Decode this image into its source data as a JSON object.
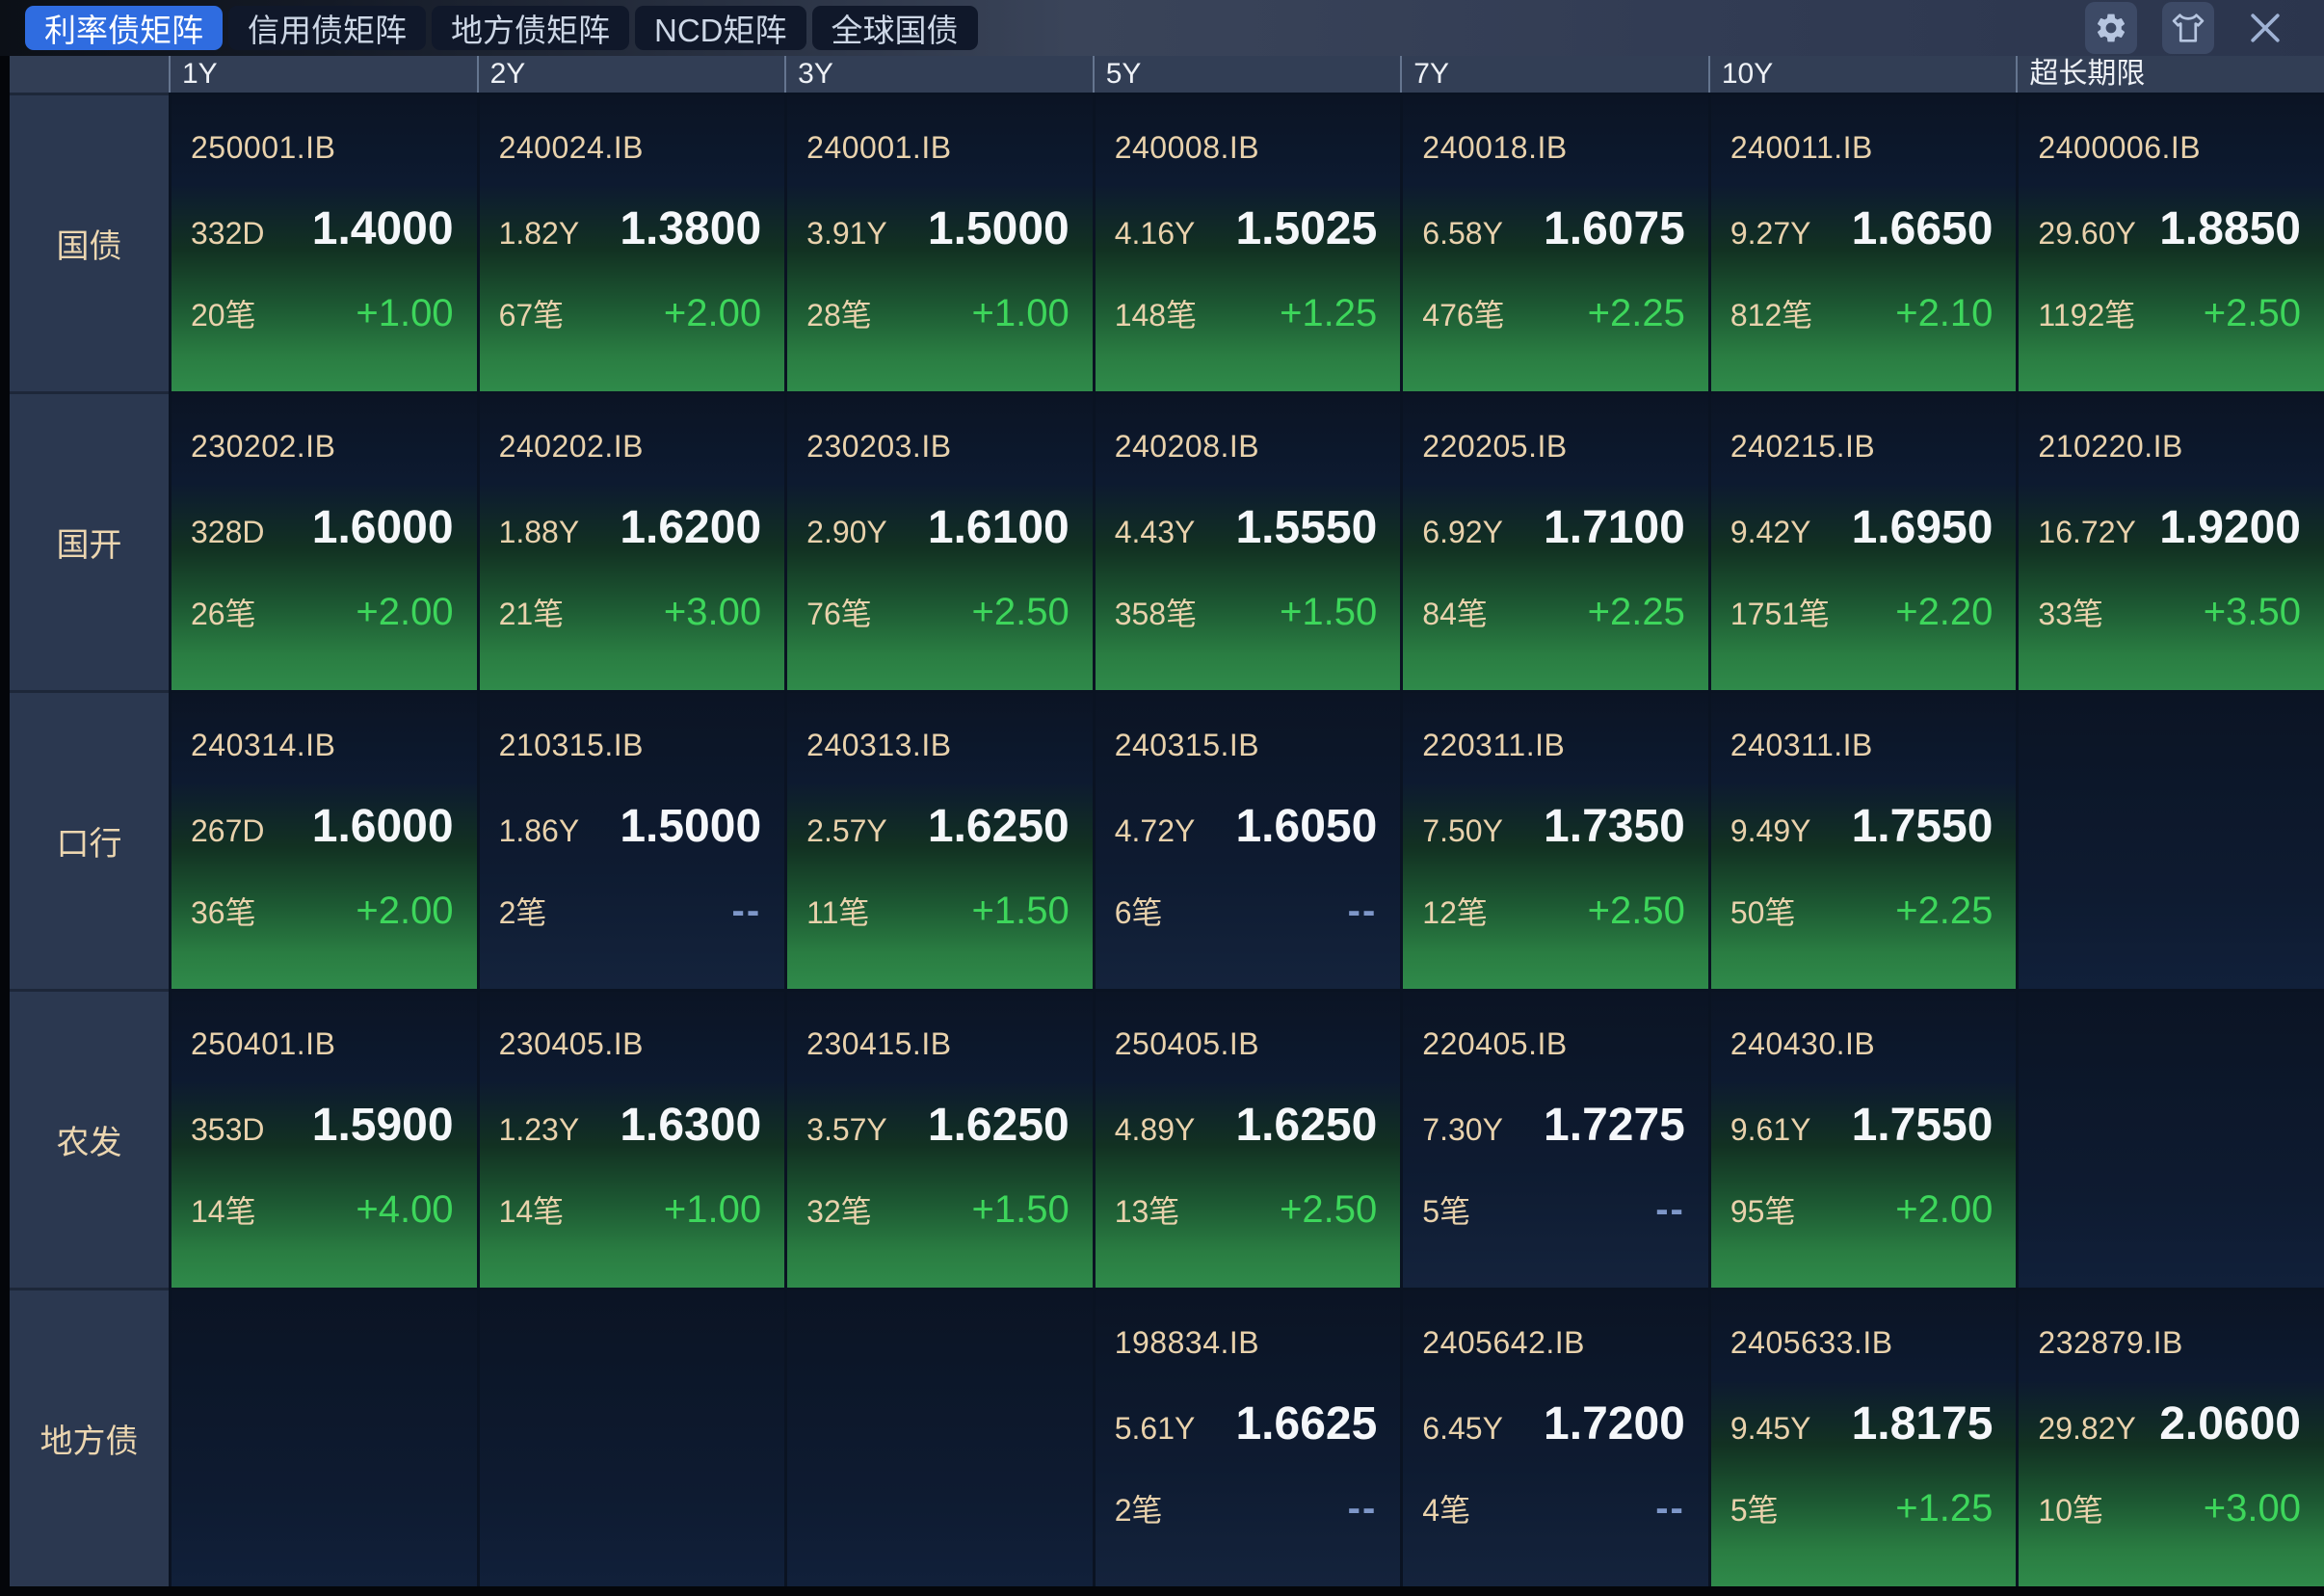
{
  "tabs": [
    {
      "label": "利率债矩阵",
      "active": true
    },
    {
      "label": "信用债矩阵",
      "active": false
    },
    {
      "label": "地方债矩阵",
      "active": false
    },
    {
      "label": "NCD矩阵",
      "active": false
    },
    {
      "label": "全球国债",
      "active": false
    }
  ],
  "window_controls": {
    "settings_icon": "gear-icon",
    "theme_icon": "tshirt-icon",
    "close_icon": "close-icon"
  },
  "colors": {
    "active_tab": "#2f6ce0",
    "cell_navy": "#0d1a30",
    "cell_green_bottom": "#2f8a4a",
    "change_up_text": "#3dd65b",
    "change_flat_text": "#7e97c9",
    "code_text": "#e9d2ac",
    "yield_text": "#f5f7fa"
  },
  "columns": [
    "1Y",
    "2Y",
    "3Y",
    "5Y",
    "7Y",
    "10Y",
    "超长期限"
  ],
  "rows": [
    {
      "label": "国债",
      "cells": [
        {
          "state": "up",
          "code": "250001.IB",
          "term": "332D",
          "yield": "1.4000",
          "trades": "20笔",
          "change": "+1.00"
        },
        {
          "state": "up",
          "code": "240024.IB",
          "term": "1.82Y",
          "yield": "1.3800",
          "trades": "67笔",
          "change": "+2.00"
        },
        {
          "state": "up",
          "code": "240001.IB",
          "term": "3.91Y",
          "yield": "1.5000",
          "trades": "28笔",
          "change": "+1.00"
        },
        {
          "state": "up",
          "code": "240008.IB",
          "term": "4.16Y",
          "yield": "1.5025",
          "trades": "148笔",
          "change": "+1.25"
        },
        {
          "state": "up",
          "code": "240018.IB",
          "term": "6.58Y",
          "yield": "1.6075",
          "trades": "476笔",
          "change": "+2.25"
        },
        {
          "state": "up",
          "code": "240011.IB",
          "term": "9.27Y",
          "yield": "1.6650",
          "trades": "812笔",
          "change": "+2.10"
        },
        {
          "state": "up",
          "code": "2400006.IB",
          "term": "29.60Y",
          "yield": "1.8850",
          "trades": "1192笔",
          "change": "+2.50"
        }
      ]
    },
    {
      "label": "国开",
      "cells": [
        {
          "state": "up",
          "code": "230202.IB",
          "term": "328D",
          "yield": "1.6000",
          "trades": "26笔",
          "change": "+2.00"
        },
        {
          "state": "up",
          "code": "240202.IB",
          "term": "1.88Y",
          "yield": "1.6200",
          "trades": "21笔",
          "change": "+3.00"
        },
        {
          "state": "up",
          "code": "230203.IB",
          "term": "2.90Y",
          "yield": "1.6100",
          "trades": "76笔",
          "change": "+2.50"
        },
        {
          "state": "up",
          "code": "240208.IB",
          "term": "4.43Y",
          "yield": "1.5550",
          "trades": "358笔",
          "change": "+1.50"
        },
        {
          "state": "up",
          "code": "220205.IB",
          "term": "6.92Y",
          "yield": "1.7100",
          "trades": "84笔",
          "change": "+2.25"
        },
        {
          "state": "up",
          "code": "240215.IB",
          "term": "9.42Y",
          "yield": "1.6950",
          "trades": "1751笔",
          "change": "+2.20"
        },
        {
          "state": "up",
          "code": "210220.IB",
          "term": "16.72Y",
          "yield": "1.9200",
          "trades": "33笔",
          "change": "+3.50"
        }
      ]
    },
    {
      "label": "口行",
      "cells": [
        {
          "state": "up",
          "code": "240314.IB",
          "term": "267D",
          "yield": "1.6000",
          "trades": "36笔",
          "change": "+2.00"
        },
        {
          "state": "flat",
          "code": "210315.IB",
          "term": "1.86Y",
          "yield": "1.5000",
          "trades": "2笔",
          "change": "--"
        },
        {
          "state": "up",
          "code": "240313.IB",
          "term": "2.57Y",
          "yield": "1.6250",
          "trades": "11笔",
          "change": "+1.50"
        },
        {
          "state": "flat",
          "code": "240315.IB",
          "term": "4.72Y",
          "yield": "1.6050",
          "trades": "6笔",
          "change": "--"
        },
        {
          "state": "up",
          "code": "220311.IB",
          "term": "7.50Y",
          "yield": "1.7350",
          "trades": "12笔",
          "change": "+2.50"
        },
        {
          "state": "up",
          "code": "240311.IB",
          "term": "9.49Y",
          "yield": "1.7550",
          "trades": "50笔",
          "change": "+2.25"
        },
        {
          "state": "empty"
        }
      ]
    },
    {
      "label": "农发",
      "cells": [
        {
          "state": "up",
          "code": "250401.IB",
          "term": "353D",
          "yield": "1.5900",
          "trades": "14笔",
          "change": "+4.00"
        },
        {
          "state": "up",
          "code": "230405.IB",
          "term": "1.23Y",
          "yield": "1.6300",
          "trades": "14笔",
          "change": "+1.00"
        },
        {
          "state": "up",
          "code": "230415.IB",
          "term": "3.57Y",
          "yield": "1.6250",
          "trades": "32笔",
          "change": "+1.50"
        },
        {
          "state": "up",
          "code": "250405.IB",
          "term": "4.89Y",
          "yield": "1.6250",
          "trades": "13笔",
          "change": "+2.50"
        },
        {
          "state": "flat",
          "code": "220405.IB",
          "term": "7.30Y",
          "yield": "1.7275",
          "trades": "5笔",
          "change": "--"
        },
        {
          "state": "up",
          "code": "240430.IB",
          "term": "9.61Y",
          "yield": "1.7550",
          "trades": "95笔",
          "change": "+2.00"
        },
        {
          "state": "empty"
        }
      ]
    },
    {
      "label": "地方债",
      "cells": [
        {
          "state": "empty"
        },
        {
          "state": "empty"
        },
        {
          "state": "empty"
        },
        {
          "state": "flat",
          "code": "198834.IB",
          "term": "5.61Y",
          "yield": "1.6625",
          "trades": "2笔",
          "change": "--"
        },
        {
          "state": "flat",
          "code": "2405642.IB",
          "term": "6.45Y",
          "yield": "1.7200",
          "trades": "4笔",
          "change": "--"
        },
        {
          "state": "up",
          "code": "2405633.IB",
          "term": "9.45Y",
          "yield": "1.8175",
          "trades": "5笔",
          "change": "+1.25"
        },
        {
          "state": "up",
          "code": "232879.IB",
          "term": "29.82Y",
          "yield": "2.0600",
          "trades": "10笔",
          "change": "+3.00"
        }
      ]
    }
  ]
}
